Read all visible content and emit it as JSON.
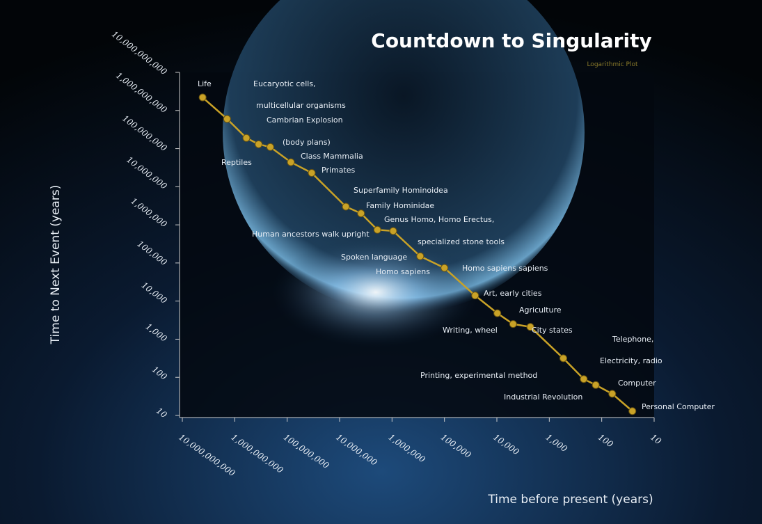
{
  "chart_data": {
    "type": "line",
    "title": "Countdown to Singularity",
    "subtitle": "Logarithmic Plot",
    "x_label": "Time before present  (years)",
    "y_label": "Time to Next Event  (years)",
    "log_x": true,
    "log_y": true,
    "xlim": [
      10000000000,
      10
    ],
    "ylim": [
      10,
      10000000000
    ],
    "xticks": [
      {
        "value": 10000000000,
        "label": "10,000,000,000"
      },
      {
        "value": 1000000000,
        "label": "1,000,000,000"
      },
      {
        "value": 100000000,
        "label": "100,000,000"
      },
      {
        "value": 10000000,
        "label": "10,000,000"
      },
      {
        "value": 1000000,
        "label": "1,000,000"
      },
      {
        "value": 100000,
        "label": "100,000"
      },
      {
        "value": 10000,
        "label": "10,000"
      },
      {
        "value": 1000,
        "label": "1,000"
      },
      100,
      10
    ],
    "yticks": [
      10,
      100,
      {
        "value": 1000,
        "label": "1,000"
      },
      {
        "value": 10000,
        "label": "10,000"
      },
      {
        "value": 100000,
        "label": "100,000"
      },
      {
        "value": 1000000,
        "label": "1,000,000"
      },
      {
        "value": 10000000,
        "label": "10,000,000"
      },
      {
        "value": 100000000,
        "label": "100,000,000"
      },
      {
        "value": 1000000000,
        "label": "1,000,000,000"
      },
      {
        "value": 10000000000,
        "label": "10,000,000,000"
      }
    ],
    "series": [
      {
        "color": "#c9a227",
        "x": [
          4100000000,
          1400000000,
          600000000,
          350000000,
          210000000,
          85000000,
          34000000,
          7600000,
          3900000,
          1900000,
          950000,
          290000,
          100000,
          26000,
          9800,
          4900,
          2300,
          540,
          220,
          130,
          63,
          26
        ],
        "values": [
          2200000000,
          600000000,
          190000000,
          130000000,
          110000000,
          44000000,
          23000000,
          3000000,
          2000000,
          740000,
          690000,
          150000,
          74000,
          14000,
          4800,
          2500,
          2100,
          316,
          90,
          63,
          37,
          13
        ]
      }
    ],
    "annotations": [
      "Life",
      "Eucaryotic cells,",
      "multicellular organisms",
      "Cambrian Explosion",
      "(body plans)",
      "Reptiles",
      "Class Mammalia",
      "Primates",
      "Superfamily Hominoidea",
      "Family Hominidae",
      "Genus Homo, Homo Erectus,",
      "Human ancestors walk upright",
      "specialized stone tools",
      "Spoken language",
      "Homo sapiens",
      "Homo sapiens sapiens",
      "Art, early cities",
      "Agriculture",
      "Writing, wheel",
      "City states",
      "Telephone,",
      "Electricity, radio",
      "Printing, experimental method",
      "Computer",
      "Industrial Revolution",
      "Personal Computer"
    ]
  }
}
